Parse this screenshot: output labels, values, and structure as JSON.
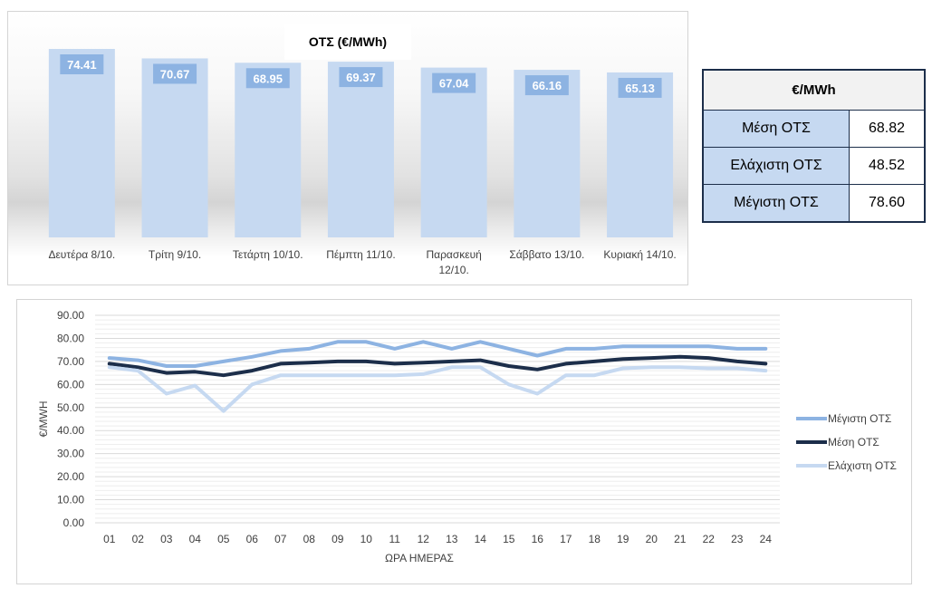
{
  "chart_data": [
    {
      "type": "bar",
      "title": "ΟΤΣ (€/MWh)",
      "categories": [
        "Δευτέρα 8/10.",
        "Τρίτη 9/10.",
        "Τετάρτη 10/10.",
        "Πέμπτη 11/10.",
        "Παρασκευή 12/10.",
        "Σάββατο 13/10.",
        "Κυριακή 14/10."
      ],
      "values": [
        74.41,
        70.67,
        68.95,
        69.37,
        67.04,
        66.16,
        65.13
      ],
      "value_labels": [
        "74.41",
        "70.67",
        "68.95",
        "69.37",
        "67.04",
        "66.16",
        "65.13"
      ],
      "bar_color": "#c6d9f1",
      "label_bg": "#8db3e2"
    },
    {
      "type": "line",
      "xlabel": "ΩΡΑ ΗΜΕΡΑΣ",
      "ylabel": "€/MWH",
      "x": [
        "01",
        "02",
        "03",
        "04",
        "05",
        "06",
        "07",
        "08",
        "09",
        "10",
        "11",
        "12",
        "13",
        "14",
        "15",
        "16",
        "17",
        "18",
        "19",
        "20",
        "21",
        "22",
        "23",
        "24"
      ],
      "yticks": [
        "0.00",
        "10.00",
        "20.00",
        "30.00",
        "40.00",
        "50.00",
        "60.00",
        "70.00",
        "80.00",
        "90.00"
      ],
      "ylim": [
        0,
        90
      ],
      "grid": true,
      "legend_position": "right",
      "series": [
        {
          "name": "Μέγιστη ΟΤΣ",
          "color": "#8db3e2",
          "values": [
            71.5,
            70.5,
            68,
            68,
            70,
            72,
            74.5,
            75.5,
            78.5,
            78.5,
            75.5,
            78.5,
            75.5,
            78.5,
            75.5,
            72.5,
            75.5,
            75.5,
            76.5,
            76.5,
            76.5,
            76.5,
            75.5,
            75.5
          ]
        },
        {
          "name": "Μέση ΟΤΣ",
          "color": "#1c2e4a",
          "values": [
            69,
            67.5,
            65,
            65.5,
            64,
            66,
            69,
            69.5,
            70,
            70,
            69,
            69.5,
            70,
            70.5,
            68,
            66.5,
            69,
            70,
            71,
            71.5,
            72,
            71.5,
            70,
            69
          ]
        },
        {
          "name": "Ελάχιστη ΟΤΣ",
          "color": "#c6d9f1",
          "values": [
            67.5,
            66,
            56,
            59.5,
            48.5,
            60,
            64,
            64,
            64,
            64,
            64,
            64.5,
            67.5,
            67.5,
            60,
            56,
            64,
            64,
            67,
            67.5,
            67.5,
            67,
            67,
            66
          ]
        }
      ]
    }
  ],
  "stats_table": {
    "header": "€/MWh",
    "rows": [
      {
        "label": "Μέση ΟΤΣ",
        "value": "68.82"
      },
      {
        "label": "Ελάχιστη ΟΤΣ",
        "value": "48.52"
      },
      {
        "label": "Μέγιστη ΟΤΣ",
        "value": "78.60"
      }
    ]
  }
}
